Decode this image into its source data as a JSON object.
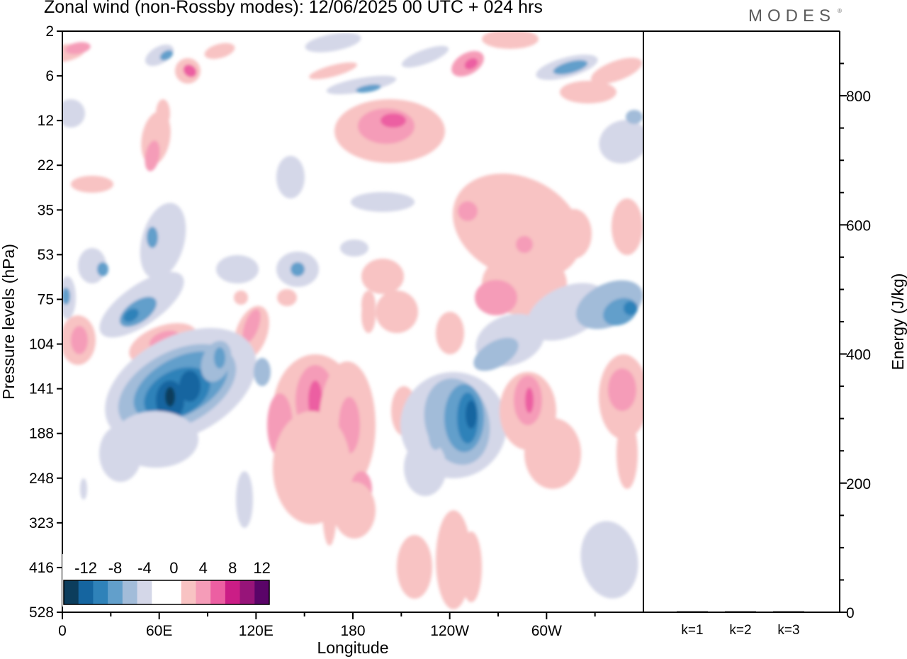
{
  "header": {
    "title": "Zonal wind (non-Rossby modes):  12/06/2025  00 UTC  + 024 hrs",
    "brand": "MODES",
    "brand_mark": "®"
  },
  "chart_data": [
    {
      "type": "heatmap",
      "title": "Zonal wind (non-Rossby modes):  12/06/2025  00 UTC  + 024 hrs",
      "xlabel": "Longitude",
      "ylabel": "Pressure levels (hPa)",
      "x_ticks": [
        "0",
        "60E",
        "120E",
        "180",
        "120W",
        "60W"
      ],
      "x_tick_values": [
        0,
        60,
        120,
        180,
        240,
        300
      ],
      "xlim": [
        0,
        360
      ],
      "y_ticks": [
        "2",
        "6",
        "12",
        "22",
        "35",
        "53",
        "75",
        "104",
        "141",
        "188",
        "248",
        "323",
        "416",
        "528"
      ],
      "y_scale": "pressure levels (hybrid, top = 2 hPa)",
      "grid": false,
      "colorbar": {
        "placement": "bottom-left (inside plot)",
        "labels": [
          "-12",
          "-8",
          "-4",
          "0",
          "4",
          "8",
          "12"
        ],
        "colors": [
          "#0c3d5c",
          "#1565a0",
          "#2f82b9",
          "#629fcb",
          "#a2bcd9",
          "#d4d7e8",
          "#ffffff",
          "#ffffff",
          "#f8c3c3",
          "#f59cb8",
          "#ec5fa2",
          "#cb1d86",
          "#971479",
          "#5a0468"
        ]
      },
      "features": [
        {
          "lon": 70,
          "level": "141",
          "value": -12
        },
        {
          "lon": 243,
          "level": "188",
          "value": -10
        },
        {
          "lon": 30,
          "level": "75",
          "value": -8
        },
        {
          "lon": 158,
          "level": "141",
          "value": 8
        },
        {
          "lon": 195,
          "level": "12",
          "value": 8
        },
        {
          "lon": 290,
          "level": "141",
          "value": 8
        },
        {
          "lon": 352,
          "level": "141",
          "value": 6
        }
      ]
    },
    {
      "type": "bar",
      "ylabel": "Energy (J/kg)",
      "categories": [
        "k=1",
        "k=2",
        "k=3"
      ],
      "values": [
        1,
        1,
        1
      ],
      "ylim": [
        0,
        900
      ],
      "y_ticks": [
        0,
        200,
        400,
        600,
        800
      ]
    }
  ]
}
